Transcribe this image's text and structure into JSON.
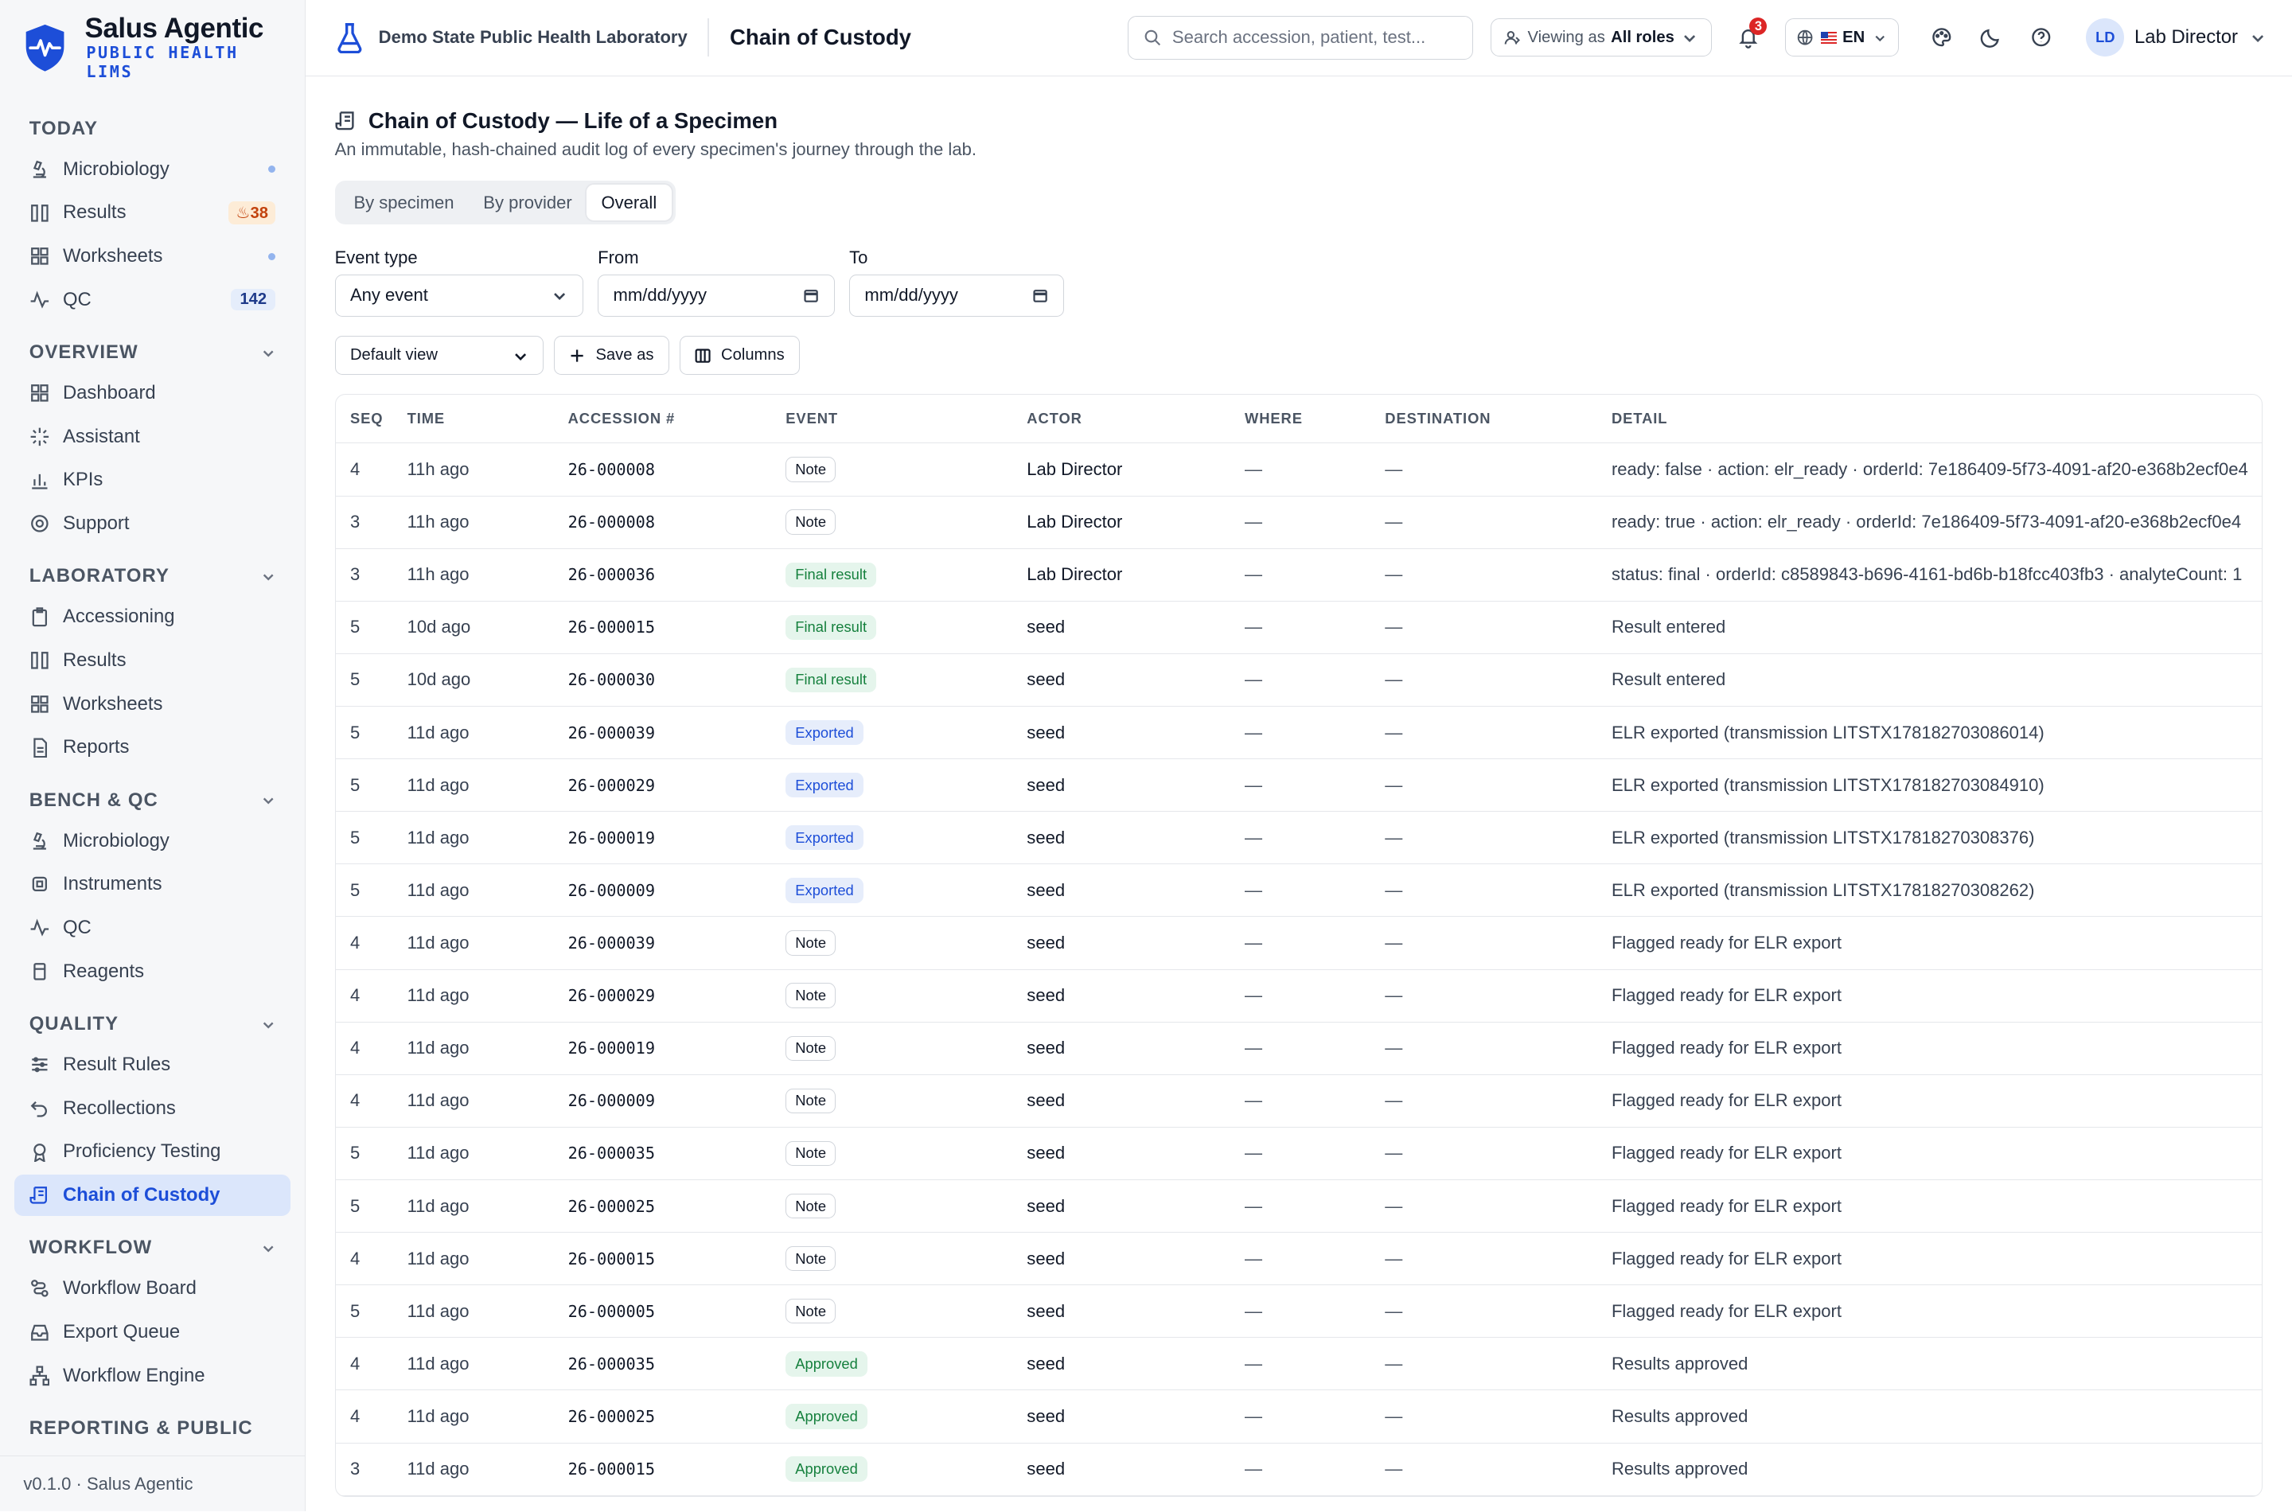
{
  "brand": {
    "title": "Salus Agentic",
    "subtitle_line1": "PUBLIC HEALTH",
    "subtitle_line2": "LIMS"
  },
  "sidebar": {
    "today": {
      "label": "TODAY",
      "items": [
        {
          "label": "Microbiology",
          "icon": "microscope-icon"
        },
        {
          "label": "Results",
          "icon": "columns-icon",
          "badge": "38"
        },
        {
          "label": "Worksheets",
          "icon": "grid-icon"
        },
        {
          "label": "QC",
          "icon": "activity-icon",
          "count": "142"
        }
      ]
    },
    "overview": {
      "label": "OVERVIEW",
      "items": [
        {
          "label": "Dashboard",
          "icon": "grid-icon"
        },
        {
          "label": "Assistant",
          "icon": "sparkle-icon"
        },
        {
          "label": "KPIs",
          "icon": "bar-chart-icon"
        },
        {
          "label": "Support",
          "icon": "life-buoy-icon"
        }
      ]
    },
    "laboratory": {
      "label": "LABORATORY",
      "items": [
        {
          "label": "Accessioning",
          "icon": "clipboard-icon"
        },
        {
          "label": "Results",
          "icon": "columns-icon"
        },
        {
          "label": "Worksheets",
          "icon": "grid-icon"
        },
        {
          "label": "Reports",
          "icon": "file-text-icon"
        }
      ]
    },
    "bench": {
      "label": "BENCH & QC",
      "items": [
        {
          "label": "Microbiology",
          "icon": "microscope-icon"
        },
        {
          "label": "Instruments",
          "icon": "cpu-icon"
        },
        {
          "label": "QC",
          "icon": "activity-icon"
        },
        {
          "label": "Reagents",
          "icon": "flask-icon"
        }
      ]
    },
    "quality": {
      "label": "QUALITY",
      "items": [
        {
          "label": "Result Rules",
          "icon": "sliders-icon"
        },
        {
          "label": "Recollections",
          "icon": "undo-icon"
        },
        {
          "label": "Proficiency Testing",
          "icon": "award-icon"
        },
        {
          "label": "Chain of Custody",
          "icon": "scroll-icon",
          "active": true
        }
      ]
    },
    "workflow": {
      "label": "WORKFLOW",
      "items": [
        {
          "label": "Workflow Board",
          "icon": "route-icon"
        },
        {
          "label": "Export Queue",
          "icon": "inbox-icon"
        },
        {
          "label": "Workflow Engine",
          "icon": "network-icon"
        }
      ]
    },
    "reporting": {
      "label": "REPORTING & PUBLIC"
    },
    "footer": "v0.1.0 · Salus Agentic"
  },
  "topbar": {
    "org": "Demo State Public Health Laboratory",
    "page": "Chain of Custody",
    "search_placeholder": "Search accession, patient, test...",
    "viewing_prefix": "Viewing as",
    "viewing_value": "All roles",
    "notifications": "3",
    "language": "EN",
    "user_initials": "LD",
    "user_name": "Lab Director"
  },
  "page": {
    "title": "Chain of Custody — Life of a Specimen",
    "subtitle": "An immutable, hash-chained audit log of every specimen's journey through the lab.",
    "tabs": [
      "By specimen",
      "By provider",
      "Overall"
    ],
    "active_tab": "Overall",
    "filters": {
      "event_type_label": "Event type",
      "event_type_value": "Any event",
      "from_label": "From",
      "from_value": "mm/dd/yyyy",
      "to_label": "To",
      "to_value": "mm/dd/yyyy"
    },
    "views": {
      "default_view": "Default view",
      "save_as": "Save as",
      "columns": "Columns"
    }
  },
  "table": {
    "columns": [
      "SEQ",
      "TIME",
      "ACCESSION #",
      "EVENT",
      "ACTOR",
      "WHERE",
      "DESTINATION",
      "DETAIL"
    ],
    "rows": [
      {
        "seq": "4",
        "time": "11h ago",
        "accession": "26-000008",
        "event": "Note",
        "kind": "note",
        "actor": "Lab Director",
        "where": "—",
        "dest": "—",
        "detail": "ready: false · action: elr_ready · orderId: 7e186409-5f73-4091-af20-e368b2ecf0e4"
      },
      {
        "seq": "3",
        "time": "11h ago",
        "accession": "26-000008",
        "event": "Note",
        "kind": "note",
        "actor": "Lab Director",
        "where": "—",
        "dest": "—",
        "detail": "ready: true · action: elr_ready · orderId: 7e186409-5f73-4091-af20-e368b2ecf0e4"
      },
      {
        "seq": "3",
        "time": "11h ago",
        "accession": "26-000036",
        "event": "Final result",
        "kind": "final",
        "actor": "Lab Director",
        "where": "—",
        "dest": "—",
        "detail": "status: final · orderId: c8589843-b696-4161-bd6b-b18fcc403fb3 · analyteCount: 1"
      },
      {
        "seq": "5",
        "time": "10d ago",
        "accession": "26-000015",
        "event": "Final result",
        "kind": "final",
        "actor": "seed",
        "where": "—",
        "dest": "—",
        "detail": "Result entered"
      },
      {
        "seq": "5",
        "time": "10d ago",
        "accession": "26-000030",
        "event": "Final result",
        "kind": "final",
        "actor": "seed",
        "where": "—",
        "dest": "—",
        "detail": "Result entered"
      },
      {
        "seq": "5",
        "time": "11d ago",
        "accession": "26-000039",
        "event": "Exported",
        "kind": "exported",
        "actor": "seed",
        "where": "—",
        "dest": "—",
        "detail": "ELR exported (transmission LITSTX178182703086014)"
      },
      {
        "seq": "5",
        "time": "11d ago",
        "accession": "26-000029",
        "event": "Exported",
        "kind": "exported",
        "actor": "seed",
        "where": "—",
        "dest": "—",
        "detail": "ELR exported (transmission LITSTX178182703084910)"
      },
      {
        "seq": "5",
        "time": "11d ago",
        "accession": "26-000019",
        "event": "Exported",
        "kind": "exported",
        "actor": "seed",
        "where": "—",
        "dest": "—",
        "detail": "ELR exported (transmission LITSTX17818270308376)"
      },
      {
        "seq": "5",
        "time": "11d ago",
        "accession": "26-000009",
        "event": "Exported",
        "kind": "exported",
        "actor": "seed",
        "where": "—",
        "dest": "—",
        "detail": "ELR exported (transmission LITSTX17818270308262)"
      },
      {
        "seq": "4",
        "time": "11d ago",
        "accession": "26-000039",
        "event": "Note",
        "kind": "note",
        "actor": "seed",
        "where": "—",
        "dest": "—",
        "detail": "Flagged ready for ELR export"
      },
      {
        "seq": "4",
        "time": "11d ago",
        "accession": "26-000029",
        "event": "Note",
        "kind": "note",
        "actor": "seed",
        "where": "—",
        "dest": "—",
        "detail": "Flagged ready for ELR export"
      },
      {
        "seq": "4",
        "time": "11d ago",
        "accession": "26-000019",
        "event": "Note",
        "kind": "note",
        "actor": "seed",
        "where": "—",
        "dest": "—",
        "detail": "Flagged ready for ELR export"
      },
      {
        "seq": "4",
        "time": "11d ago",
        "accession": "26-000009",
        "event": "Note",
        "kind": "note",
        "actor": "seed",
        "where": "—",
        "dest": "—",
        "detail": "Flagged ready for ELR export"
      },
      {
        "seq": "5",
        "time": "11d ago",
        "accession": "26-000035",
        "event": "Note",
        "kind": "note",
        "actor": "seed",
        "where": "—",
        "dest": "—",
        "detail": "Flagged ready for ELR export"
      },
      {
        "seq": "5",
        "time": "11d ago",
        "accession": "26-000025",
        "event": "Note",
        "kind": "note",
        "actor": "seed",
        "where": "—",
        "dest": "—",
        "detail": "Flagged ready for ELR export"
      },
      {
        "seq": "4",
        "time": "11d ago",
        "accession": "26-000015",
        "event": "Note",
        "kind": "note",
        "actor": "seed",
        "where": "—",
        "dest": "—",
        "detail": "Flagged ready for ELR export"
      },
      {
        "seq": "5",
        "time": "11d ago",
        "accession": "26-000005",
        "event": "Note",
        "kind": "note",
        "actor": "seed",
        "where": "—",
        "dest": "—",
        "detail": "Flagged ready for ELR export"
      },
      {
        "seq": "4",
        "time": "11d ago",
        "accession": "26-000035",
        "event": "Approved",
        "kind": "approved",
        "actor": "seed",
        "where": "—",
        "dest": "—",
        "detail": "Results approved"
      },
      {
        "seq": "4",
        "time": "11d ago",
        "accession": "26-000025",
        "event": "Approved",
        "kind": "approved",
        "actor": "seed",
        "where": "—",
        "dest": "—",
        "detail": "Results approved"
      },
      {
        "seq": "3",
        "time": "11d ago",
        "accession": "26-000015",
        "event": "Approved",
        "kind": "approved",
        "actor": "seed",
        "where": "—",
        "dest": "—",
        "detail": "Results approved"
      }
    ]
  }
}
